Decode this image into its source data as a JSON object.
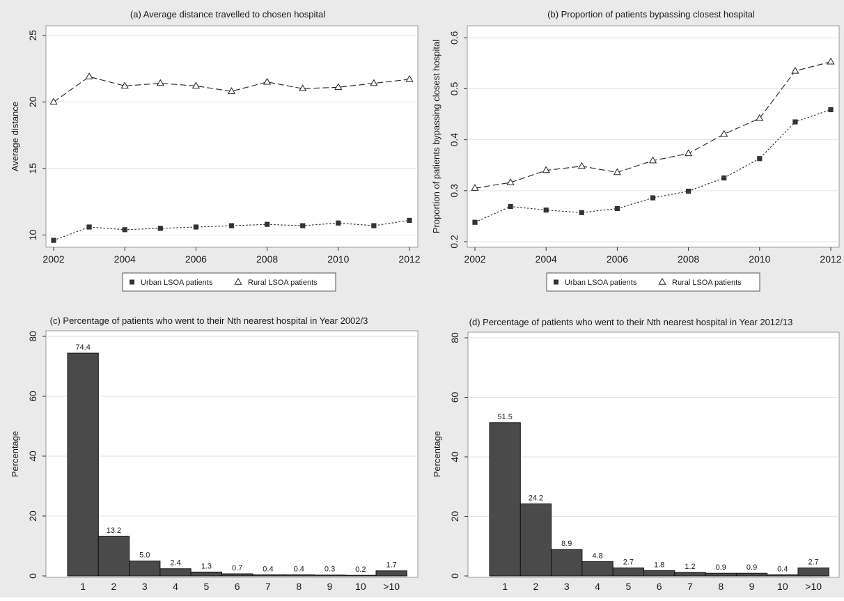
{
  "colors": {
    "panel_bg": "#eaeaea",
    "plot_bg": "#ffffff",
    "grid": "#e2e2e2",
    "bar_fill": "#4a4a4a",
    "series_line": "#222222",
    "text": "#1a1a1a"
  },
  "chart_data": [
    {
      "id": "a",
      "type": "line",
      "title": "(a) Average distance travelled to chosen hospital",
      "xlabel": "",
      "ylabel": "Average distance",
      "x": [
        2002,
        2003,
        2004,
        2005,
        2006,
        2007,
        2008,
        2009,
        2010,
        2011,
        2012
      ],
      "xticks": [
        2002,
        2004,
        2006,
        2008,
        2010,
        2012
      ],
      "xticklabels": [
        "2002",
        "2004",
        "2006",
        "2008",
        "2010",
        "2012"
      ],
      "xlim": [
        2002,
        2012
      ],
      "yticks": [
        10,
        15,
        20,
        25
      ],
      "yticklabels": [
        "10",
        "15",
        "20",
        "25"
      ],
      "ylim": [
        9.5,
        25.2
      ],
      "grid": true,
      "legend_position": "bottom",
      "series": [
        {
          "name": "Urban LSOA patients",
          "marker": "square",
          "dash": "dotted",
          "values": [
            9.6,
            10.6,
            10.4,
            10.5,
            10.6,
            10.7,
            10.8,
            10.7,
            10.9,
            10.7,
            11.1
          ]
        },
        {
          "name": "Rural LSOA patients",
          "marker": "triangle",
          "dash": "dashed",
          "values": [
            20.0,
            21.9,
            21.2,
            21.4,
            21.2,
            20.8,
            21.5,
            21.0,
            21.1,
            21.4,
            21.7
          ]
        }
      ]
    },
    {
      "id": "b",
      "type": "line",
      "title": "(b) Proportion of patients bypassing closest hospital",
      "xlabel": "",
      "ylabel": "Proportion of patients bypassing closest hospital",
      "x": [
        2002,
        2003,
        2004,
        2005,
        2006,
        2007,
        2008,
        2009,
        2010,
        2011,
        2012
      ],
      "xticks": [
        2002,
        2004,
        2006,
        2008,
        2010,
        2012
      ],
      "xticklabels": [
        "2002",
        "2004",
        "2006",
        "2008",
        "2010",
        "2012"
      ],
      "xlim": [
        2002,
        2012
      ],
      "yticks": [
        0.2,
        0.3,
        0.4,
        0.5,
        0.6
      ],
      "yticklabels": [
        "0.2",
        "0.3",
        "0.4",
        "0.5",
        "0.6"
      ],
      "ylim": [
        0.2,
        0.61
      ],
      "grid": true,
      "legend_position": "bottom",
      "series": [
        {
          "name": "Urban LSOA patients",
          "marker": "square",
          "dash": "dotted",
          "values": [
            0.238,
            0.269,
            0.262,
            0.257,
            0.265,
            0.286,
            0.299,
            0.325,
            0.363,
            0.435,
            0.459
          ]
        },
        {
          "name": "Rural LSOA patients",
          "marker": "triangle",
          "dash": "dashed",
          "values": [
            0.305,
            0.316,
            0.34,
            0.348,
            0.336,
            0.359,
            0.373,
            0.411,
            0.442,
            0.535,
            0.553
          ]
        }
      ]
    },
    {
      "id": "c",
      "type": "bar",
      "title": "(c) Percentage of patients who went to their Nth nearest hospital in Year 2002/3",
      "xlabel": "",
      "ylabel": "Percentage",
      "categories": [
        "1",
        "2",
        "3",
        "4",
        "5",
        "6",
        "7",
        "8",
        "9",
        "10",
        ">10"
      ],
      "values": [
        74.4,
        13.2,
        5.0,
        2.4,
        1.3,
        0.7,
        0.4,
        0.4,
        0.3,
        0.2,
        1.7
      ],
      "value_labels": [
        "74.4",
        "13.2",
        "5.0",
        "2.4",
        "1.3",
        "0.7",
        "0.4",
        "0.4",
        "0.3",
        "0.2",
        "1.7"
      ],
      "yticks": [
        0,
        20,
        40,
        60,
        80
      ],
      "yticklabels": [
        "0",
        "20",
        "40",
        "60",
        "80"
      ],
      "ylim": [
        0,
        80
      ],
      "grid": true
    },
    {
      "id": "d",
      "type": "bar",
      "title": "(d) Percentage of patients who went to their Nth nearest hospital in Year 2012/13",
      "xlabel": "",
      "ylabel": "Percentage",
      "categories": [
        "1",
        "2",
        "3",
        "4",
        "5",
        "6",
        "7",
        "8",
        "9",
        "10",
        ">10"
      ],
      "values": [
        51.5,
        24.2,
        8.9,
        4.8,
        2.7,
        1.8,
        1.2,
        0.9,
        0.9,
        0.4,
        2.7
      ],
      "value_labels": [
        "51.5",
        "24.2",
        "8.9",
        "4.8",
        "2.7",
        "1.8",
        "1.2",
        "0.9",
        "0.9",
        "0.4",
        "2.7"
      ],
      "yticks": [
        0,
        20,
        40,
        60,
        80
      ],
      "yticklabels": [
        "0",
        "20",
        "40",
        "60",
        "80"
      ],
      "ylim": [
        0,
        80
      ],
      "grid": true
    }
  ]
}
